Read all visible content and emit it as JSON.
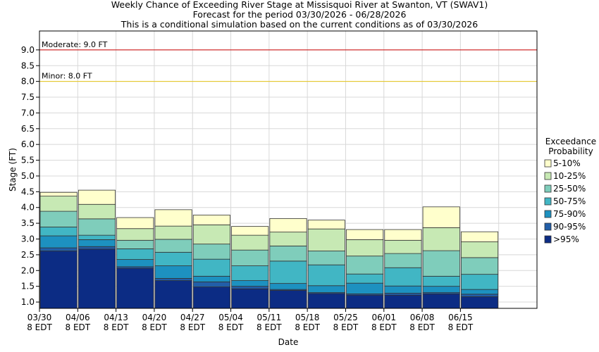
{
  "title_lines": [
    "Weekly Chance of Exceeding River Stage at Missisquoi River at Swanton, VT (SWAV1)",
    "Forecast for the period 03/30/2026 - 06/28/2026",
    "This is a conditional simulation based on the current conditions as of 03/30/2026"
  ],
  "colors": {
    "p5_10": "#ffffcc",
    "p10_25": "#c7e9b4",
    "p25_50": "#7fcdbb",
    "p50_75": "#41b6c4",
    "p75_90": "#1d91c0",
    "p90_95": "#225ea8",
    "p95": "#0c2c84",
    "moderate_line": "#cc0000",
    "minor_line": "#e6c619"
  },
  "chart_data": {
    "type": "bar",
    "subtype": "stacked-floating-exceedance",
    "xlabel": "Date",
    "ylabel": "Stage (FT)",
    "ylim": [
      0.8,
      9.6
    ],
    "yticks": [
      "1.0",
      "1.5",
      "2.0",
      "2.5",
      "3.0",
      "3.5",
      "4.0",
      "4.5",
      "5.0",
      "5.5",
      "6.0",
      "6.5",
      "7.0",
      "7.5",
      "8.0",
      "8.5",
      "9.0"
    ],
    "grid": true,
    "legend_position": "right",
    "legend_title": [
      "Exceedance",
      "Probability"
    ],
    "categories": [
      "03/30 8 EDT",
      "04/06 8 EDT",
      "04/13 8 EDT",
      "04/20 8 EDT",
      "04/27 8 EDT",
      "05/04 8 EDT",
      "05/11 8 EDT",
      "05/18 8 EDT",
      "05/25 8 EDT",
      "06/01 8 EDT",
      "06/08 8 EDT",
      "06/15 8 EDT",
      ""
    ],
    "tick_labels": [
      {
        "date": "03/30",
        "time": "8 EDT"
      },
      {
        "date": "04/06",
        "time": "8 EDT"
      },
      {
        "date": "04/13",
        "time": "8 EDT"
      },
      {
        "date": "04/20",
        "time": "8 EDT"
      },
      {
        "date": "04/27",
        "time": "8 EDT"
      },
      {
        "date": "05/04",
        "time": "8 EDT"
      },
      {
        "date": "05/11",
        "time": "8 EDT"
      },
      {
        "date": "05/18",
        "time": "8 EDT"
      },
      {
        "date": "05/25",
        "time": "8 EDT"
      },
      {
        "date": "06/01",
        "time": "8 EDT"
      },
      {
        "date": "06/08",
        "time": "8 EDT"
      },
      {
        "date": "06/15",
        "time": "8 EDT"
      }
    ],
    "series": [
      {
        "name": ">95%",
        "color_key": "p95"
      },
      {
        "name": "90-95%",
        "color_key": "p90_95"
      },
      {
        "name": "75-90%",
        "color_key": "p75_90"
      },
      {
        "name": "50-75%",
        "color_key": "p50_75"
      },
      {
        "name": "25-50%",
        "color_key": "p25_50"
      },
      {
        "name": "10-25%",
        "color_key": "p10_25"
      },
      {
        "name": "5-10%",
        "color_key": "p5_10"
      }
    ],
    "weeks": [
      {
        "stages": [
          2.62,
          2.72,
          3.1,
          3.38,
          3.88,
          4.36,
          4.48
        ]
      },
      {
        "stages": [
          2.68,
          2.76,
          2.98,
          3.12,
          3.64,
          4.1,
          4.55
        ]
      },
      {
        "stages": [
          2.07,
          2.12,
          2.35,
          2.69,
          2.96,
          3.33,
          3.68
        ]
      },
      {
        "stages": [
          1.68,
          1.75,
          2.15,
          2.58,
          2.99,
          3.41,
          3.93
        ]
      },
      {
        "stages": [
          1.48,
          1.64,
          1.82,
          2.36,
          2.84,
          3.45,
          3.76
        ]
      },
      {
        "stages": [
          1.42,
          1.5,
          1.68,
          2.15,
          2.65,
          3.12,
          3.4
        ]
      },
      {
        "stages": [
          1.37,
          1.4,
          1.59,
          2.3,
          2.78,
          3.22,
          3.65
        ]
      },
      {
        "stages": [
          1.27,
          1.3,
          1.52,
          2.18,
          2.62,
          3.32,
          3.6
        ]
      },
      {
        "stages": [
          1.22,
          1.26,
          1.6,
          1.89,
          2.46,
          2.98,
          3.3
        ]
      },
      {
        "stages": [
          1.22,
          1.28,
          1.51,
          2.09,
          2.54,
          2.96,
          3.3
        ]
      },
      {
        "stages": [
          1.26,
          1.3,
          1.5,
          1.82,
          2.63,
          3.36,
          4.02
        ]
      },
      {
        "stages": [
          1.17,
          1.25,
          1.4,
          1.88,
          2.41,
          2.91,
          3.23
        ]
      }
    ],
    "thresholds": [
      {
        "label": "Moderate: 9.0 FT",
        "value": 9.0,
        "color_key": "moderate_line"
      },
      {
        "label": "Minor: 8.0 FT",
        "value": 8.0,
        "color_key": "minor_line"
      }
    ]
  }
}
